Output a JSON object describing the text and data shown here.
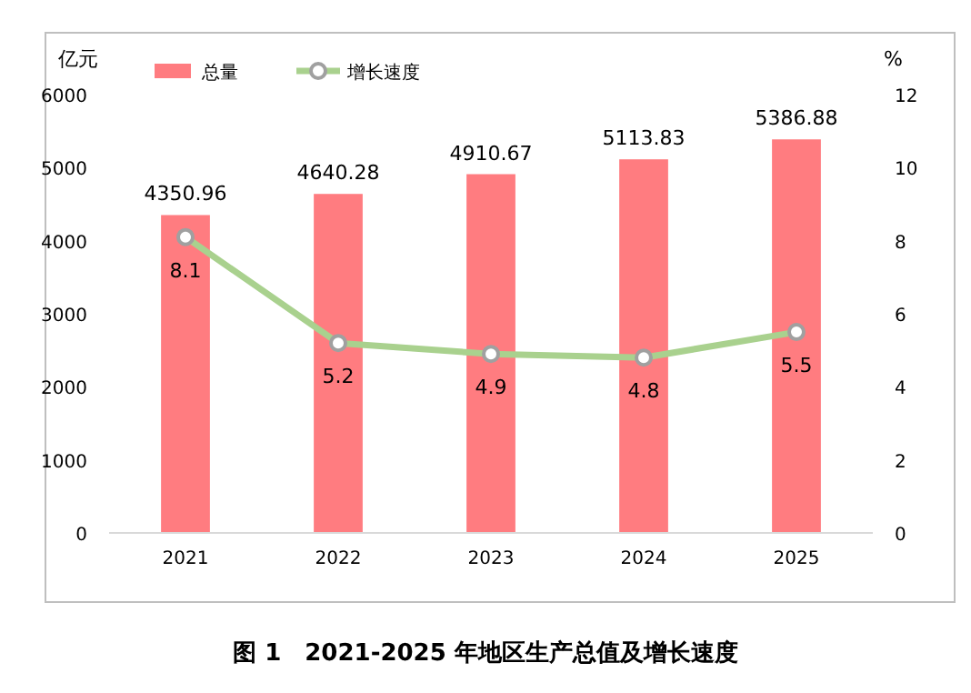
{
  "chart_data": {
    "type": "bar",
    "title": "图 1　2021-2025 年地区生产总值及增长速度",
    "ylabel": "亿元",
    "y2label": "%",
    "categories": [
      "2021",
      "2022",
      "2023",
      "2024",
      "2025"
    ],
    "series": [
      {
        "name": "总量",
        "color": "#ff7c80",
        "values": [
          4350.96,
          4640.28,
          4910.67,
          5113.83,
          5386.88
        ]
      },
      {
        "name": "增长速度",
        "type": "line",
        "axis": "y2",
        "color": "#a9d18e",
        "marker": "circle",
        "values": [
          8.1,
          5.2,
          4.9,
          4.8,
          5.5
        ]
      }
    ],
    "ylim": [
      0,
      6000
    ],
    "yticks": [
      0,
      1000,
      2000,
      3000,
      4000,
      5000,
      6000
    ],
    "y2lim": [
      0,
      12
    ],
    "y2ticks": [
      0,
      2,
      4,
      6,
      8,
      10,
      12
    ],
    "data_labels": true,
    "legend": "top left",
    "grid": false
  }
}
